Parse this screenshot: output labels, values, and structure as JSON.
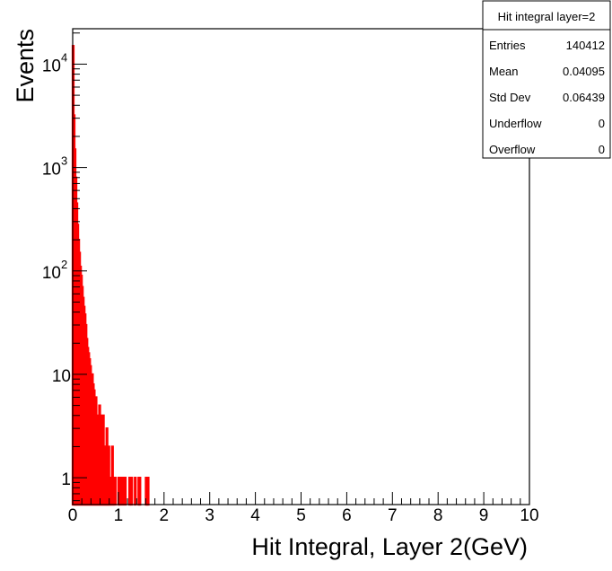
{
  "chart_data": {
    "type": "histogram",
    "xlabel": "Hit Integral, Layer 2(GeV)",
    "ylabel": "Events",
    "xlim": [
      0,
      10
    ],
    "ylim": [
      0.55,
      22000
    ],
    "log_y": true,
    "grid": false,
    "x_ticks": [
      "0",
      "1",
      "2",
      "3",
      "4",
      "5",
      "6",
      "7",
      "8",
      "9",
      "10"
    ],
    "y_ticks": [
      {
        "value": 1,
        "base": "1",
        "exp": ""
      },
      {
        "value": 10,
        "base": "10",
        "exp": ""
      },
      {
        "value": 100,
        "base": "10",
        "exp": "2"
      },
      {
        "value": 1000,
        "base": "10",
        "exp": "3"
      },
      {
        "value": 10000,
        "base": "10",
        "exp": "4"
      }
    ],
    "series": [
      {
        "color": "#ff0000",
        "bin_edges": [
          0.0,
          0.02,
          0.04,
          0.06,
          0.08,
          0.1,
          0.12,
          0.14,
          0.16,
          0.18,
          0.2,
          0.22,
          0.24,
          0.26,
          0.28,
          0.3,
          0.32,
          0.34,
          0.36,
          0.38,
          0.4,
          0.42,
          0.44,
          0.46,
          0.48,
          0.5,
          0.52,
          0.54,
          0.56,
          0.58,
          0.6,
          0.62,
          0.64,
          0.66,
          0.68,
          0.7,
          0.72,
          0.74,
          0.76,
          0.78,
          0.8,
          0.82,
          0.84,
          0.86,
          0.88,
          0.9,
          0.92,
          0.94,
          0.96,
          0.98,
          1.0,
          1.02,
          1.04,
          1.06,
          1.08,
          1.1,
          1.12,
          1.14,
          1.16,
          1.18,
          1.2,
          1.22,
          1.24,
          1.26,
          1.28,
          1.3,
          1.32,
          1.34,
          1.36,
          1.38,
          1.4,
          1.42,
          1.44,
          1.46,
          1.48,
          1.5,
          1.52,
          1.54,
          1.56,
          1.58,
          1.6,
          1.62,
          1.64,
          1.66
        ],
        "counts": [
          15000,
          3200,
          1500,
          800,
          450,
          280,
          200,
          150,
          110,
          90,
          70,
          55,
          45,
          38,
          30,
          22,
          18,
          16,
          14,
          12,
          9,
          10,
          8,
          7,
          5,
          6,
          4,
          3,
          2,
          5,
          4,
          2,
          3,
          4,
          2,
          1,
          2,
          3,
          1,
          2,
          1,
          1,
          0,
          2,
          1,
          0,
          1,
          0,
          0,
          0,
          1,
          1,
          0,
          0,
          1,
          0,
          0,
          1,
          0,
          0,
          0,
          0,
          1,
          0,
          1,
          0,
          0,
          0,
          1,
          0,
          0,
          0,
          1,
          1,
          0,
          0,
          0,
          0,
          0,
          0,
          1,
          1,
          1
        ]
      }
    ]
  },
  "stats_box": {
    "title": "Hit integral layer=2",
    "rows": [
      {
        "label": "Entries",
        "value": "140412"
      },
      {
        "label": "Mean",
        "value": "0.04095"
      },
      {
        "label": "Std Dev",
        "value": "0.06439"
      },
      {
        "label": "Underflow",
        "value": "0"
      },
      {
        "label": "Overflow",
        "value": "0"
      }
    ]
  }
}
